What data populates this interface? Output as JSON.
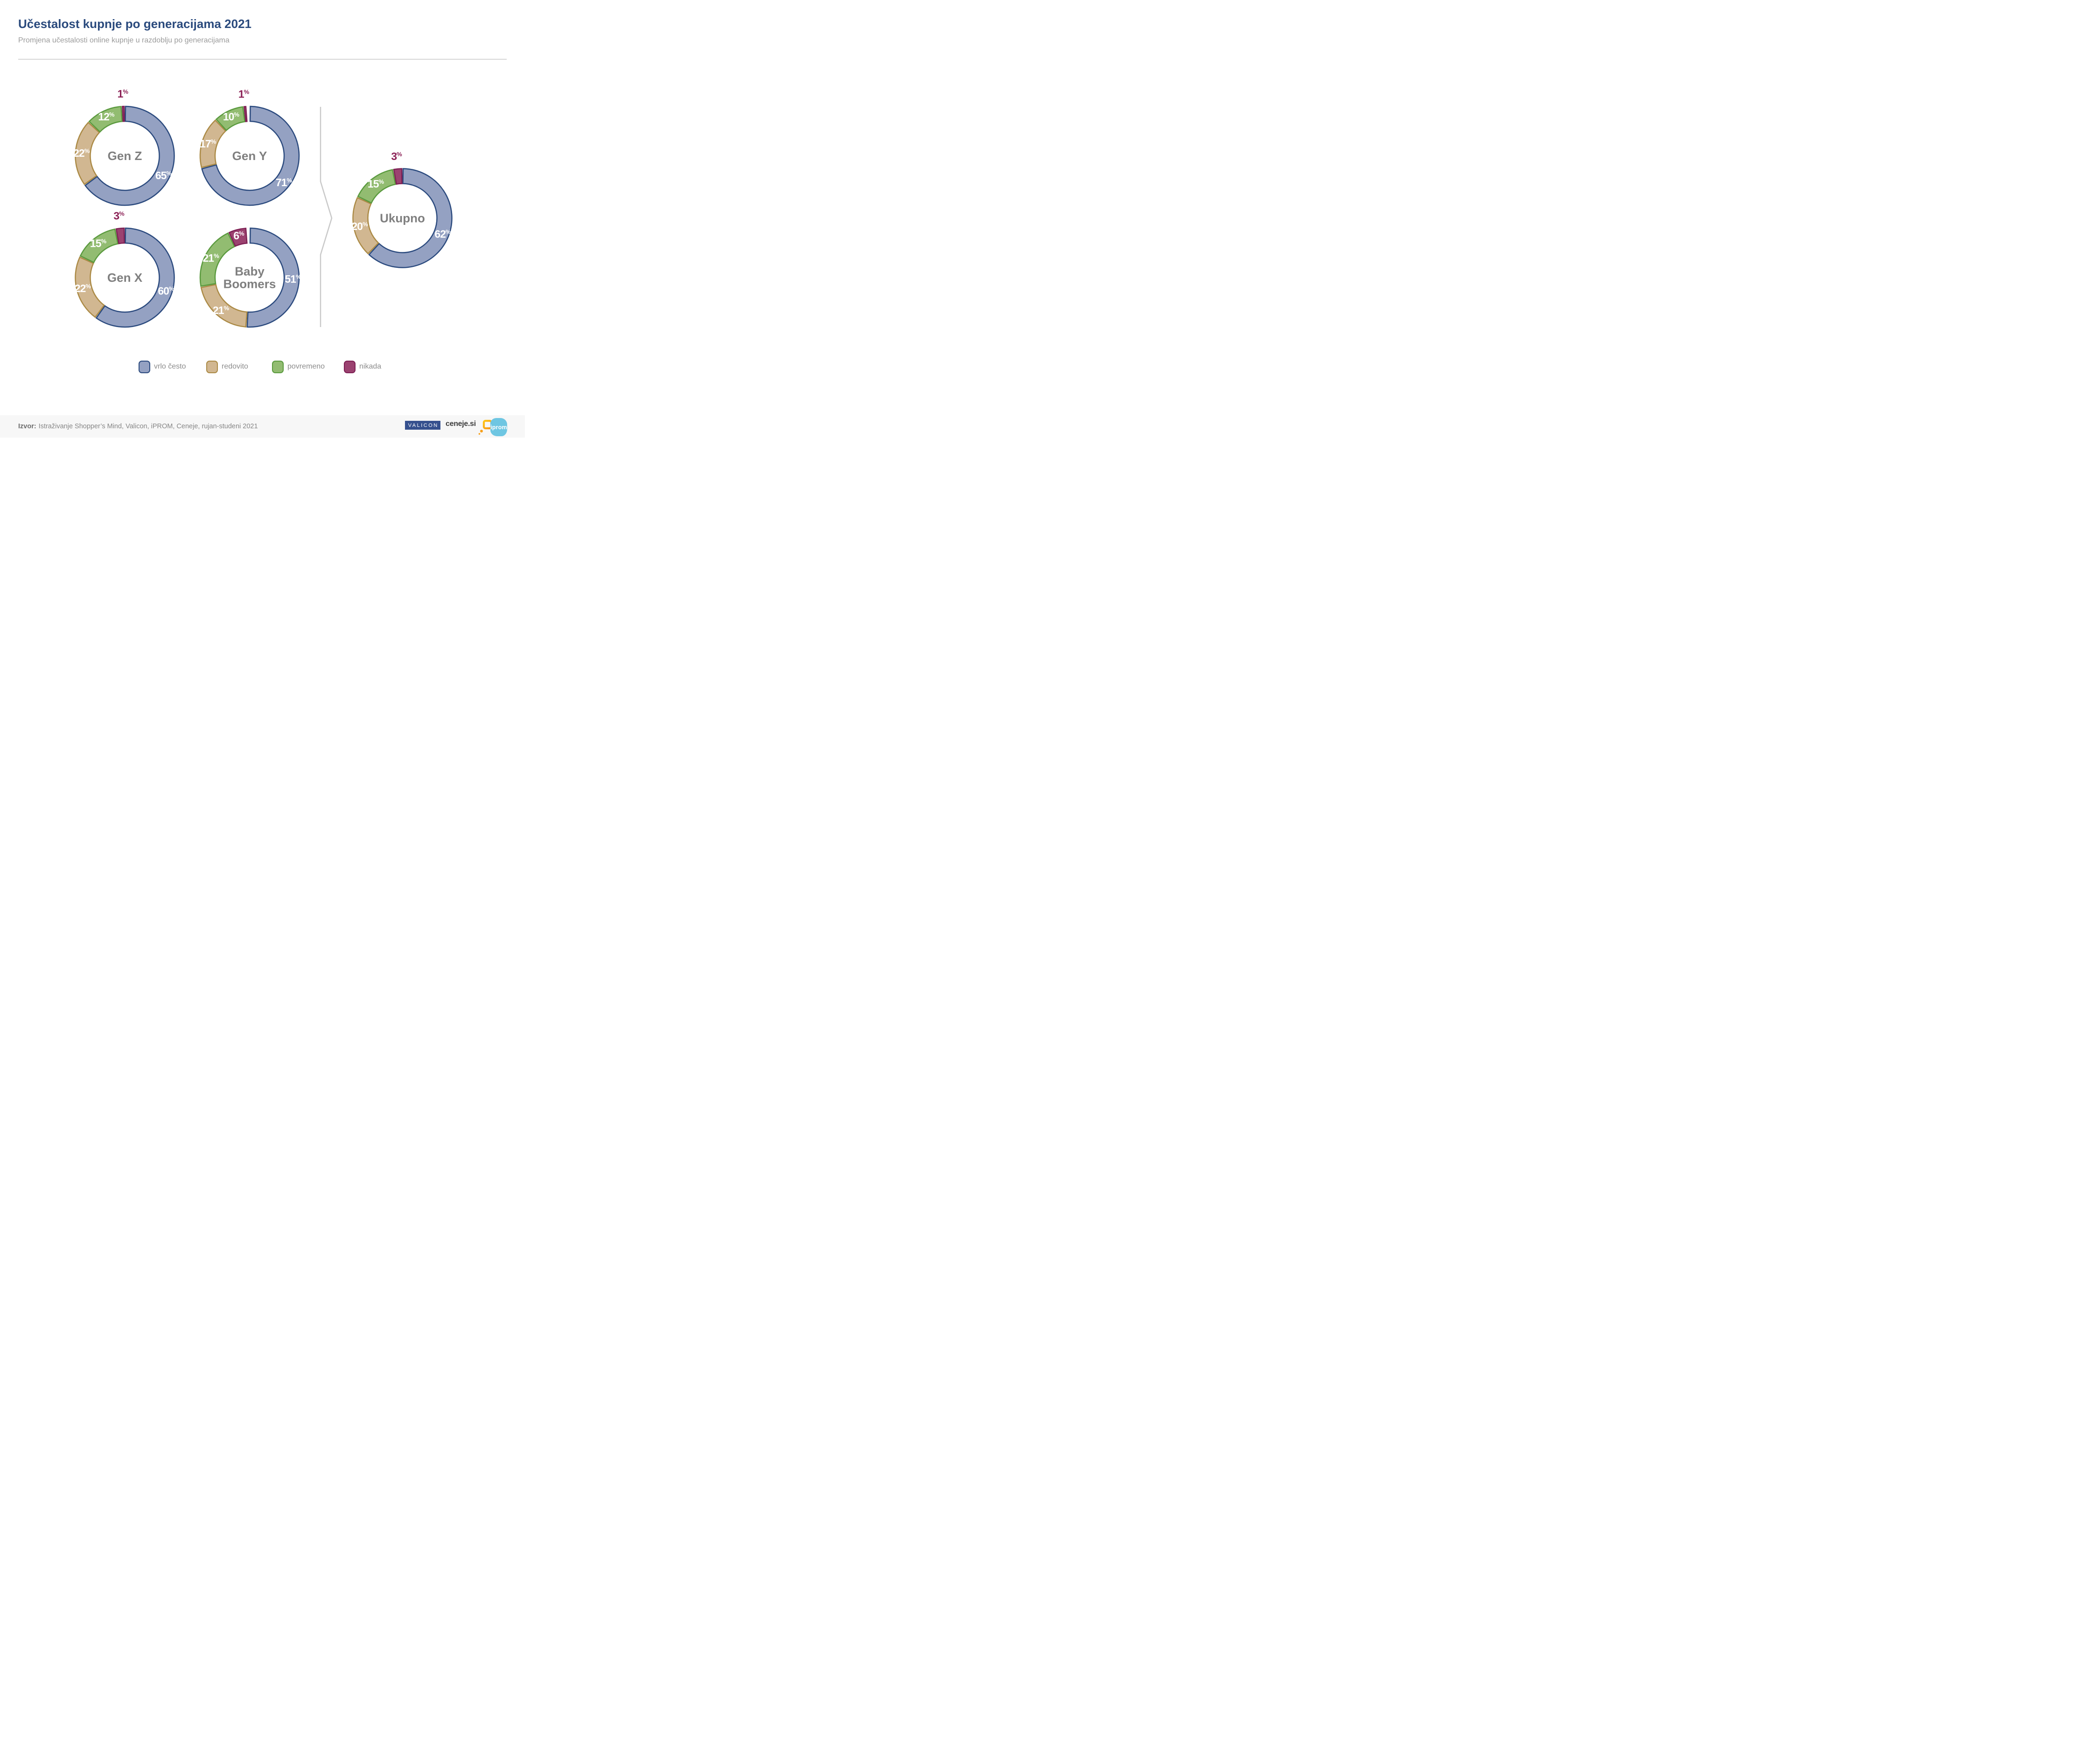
{
  "header": {
    "title": "Učestalost kupnje po generacijama 2021",
    "subtitle": "Promjena učestalosti online kupnje u razdoblju po generacijama"
  },
  "chart_data": {
    "type": "pie",
    "subtype": "donut-multiple",
    "unit": "%",
    "categories": [
      "vrlo često",
      "redovito",
      "povremeno",
      "nikada"
    ],
    "legend": [
      {
        "label": "vrlo često",
        "fill": "#94a1c2",
        "stroke": "#2b4a7e"
      },
      {
        "label": "redovito",
        "fill": "#d1b791",
        "stroke": "#ab8a45"
      },
      {
        "label": "povremeno",
        "fill": "#92bc71",
        "stroke": "#5a9a3e"
      },
      {
        "label": "nikada",
        "fill": "#9b4270",
        "stroke": "#7e2054"
      }
    ],
    "outside_label_color": "#8b2055",
    "center_label_color": "#7f7f7f",
    "inside_label_color": "#ffffff",
    "charts": [
      {
        "label": "Gen Z",
        "center_lines": [
          "Gen Z"
        ],
        "values": [
          65,
          22,
          12,
          1
        ]
      },
      {
        "label": "Gen Y",
        "center_lines": [
          "Gen Y"
        ],
        "values": [
          71,
          17,
          10,
          1
        ]
      },
      {
        "label": "Gen X",
        "center_lines": [
          "Gen X"
        ],
        "values": [
          60,
          22,
          15,
          3
        ]
      },
      {
        "label": "Baby Boomers",
        "center_lines": [
          "Baby",
          "Boomers"
        ],
        "values": [
          51,
          21,
          21,
          6
        ]
      },
      {
        "label": "Ukupno",
        "center_lines": [
          "Ukupno"
        ],
        "values": [
          62,
          20,
          15,
          3
        ]
      }
    ]
  },
  "footer": {
    "source_label": "Izvor:",
    "source_text": "Istraživanje Shopper’s Mind, Valicon, iPROM, Ceneje, rujan-studeni 2021",
    "logos": {
      "valicon": "VALICON",
      "ceneje": "ceneje.si",
      "iprom": "iprom"
    }
  }
}
